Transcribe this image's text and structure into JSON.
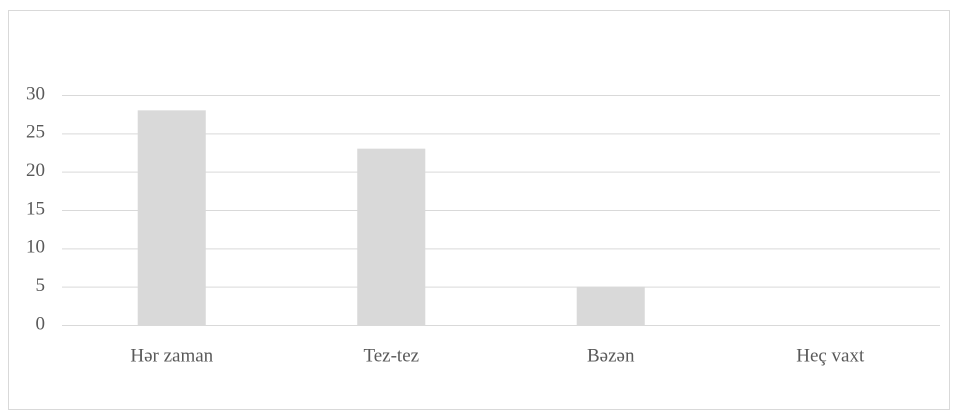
{
  "chart_data": {
    "type": "bar",
    "categories": [
      "Hər zaman",
      "Tez-tez",
      "Bəzən",
      "Heç vaxt"
    ],
    "values": [
      28,
      23,
      5,
      0
    ],
    "color": "#d9d9d9",
    "ylim": [
      0,
      30
    ],
    "yticks": [
      0,
      5,
      10,
      15,
      20,
      25,
      30
    ],
    "grid": true
  }
}
